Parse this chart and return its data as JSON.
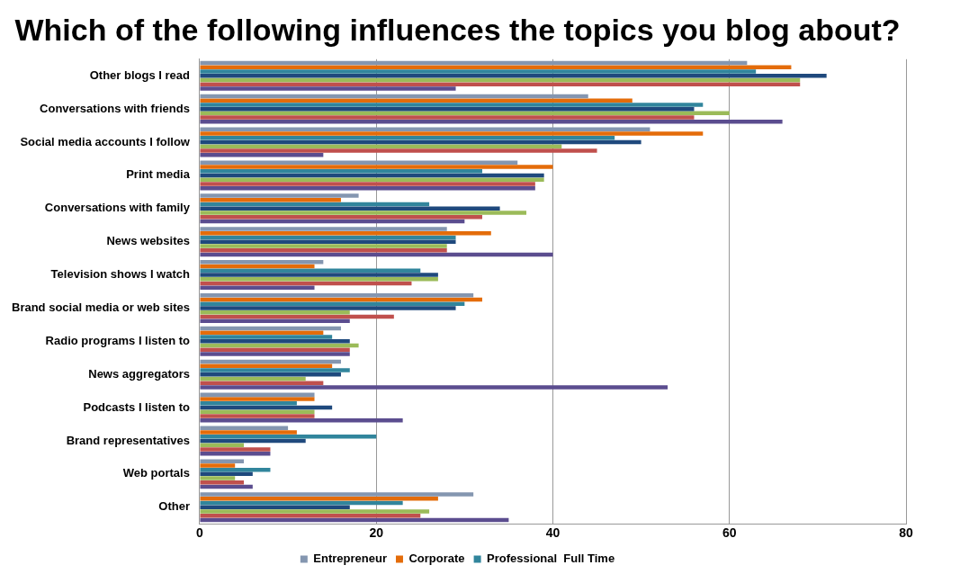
{
  "chart_data": {
    "type": "bar",
    "orientation": "horizontal",
    "title": "Which of the following influences the topics you blog about?",
    "categories": [
      "Other blogs I read",
      "Conversations with friends",
      "Social media accounts I follow",
      "Print media",
      "Conversations with family",
      "News websites",
      "Television shows I watch",
      "Brand social media or web sites",
      "Radio programs I listen to",
      "News aggregators",
      "Podcasts I listen to",
      "Brand representatives",
      "Web portals",
      "Other"
    ],
    "series": [
      {
        "name": "Entrepreneur",
        "color": "#8496b0",
        "values": [
          62,
          44,
          51,
          36,
          18,
          28,
          14,
          31,
          16,
          16,
          13,
          10,
          5,
          31
        ]
      },
      {
        "name": "Corporate",
        "color": "#e46c0a",
        "values": [
          67,
          49,
          57,
          40,
          16,
          33,
          13,
          32,
          14,
          15,
          13,
          11,
          4,
          27
        ]
      },
      {
        "name": "Professional  Full Time",
        "color": "#31859c",
        "values": [
          63,
          57,
          47,
          32,
          26,
          29,
          25,
          30,
          15,
          17,
          11,
          20,
          8,
          23
        ]
      },
      {
        "color": "#1f497d",
        "values": [
          71,
          56,
          50,
          39,
          34,
          29,
          27,
          29,
          17,
          16,
          15,
          12,
          6,
          17
        ]
      },
      {
        "color": "#9bbb59",
        "values": [
          68,
          60,
          41,
          39,
          37,
          28,
          27,
          17,
          18,
          12,
          13,
          5,
          4,
          26
        ]
      },
      {
        "color": "#c0504d",
        "values": [
          68,
          56,
          45,
          38,
          32,
          28,
          24,
          22,
          17,
          14,
          13,
          8,
          5,
          25
        ]
      },
      {
        "color": "#5b4d8f",
        "values": [
          29,
          66,
          14,
          38,
          30,
          40,
          13,
          17,
          17,
          53,
          23,
          8,
          6,
          35
        ]
      }
    ],
    "xlim": [
      0,
      80
    ],
    "xticks": [
      0,
      20,
      40,
      60,
      80
    ],
    "grid": "x",
    "legend": "bottom"
  }
}
